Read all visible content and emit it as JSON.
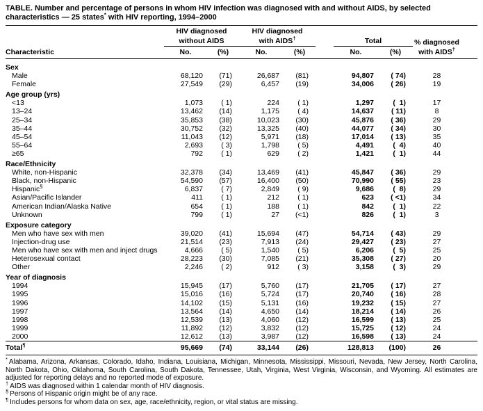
{
  "colors": {
    "background": "#ffffff",
    "text": "#000000",
    "rule": "#000000"
  },
  "title": {
    "part1": "TABLE. Number and percentage of persons in whom HIV infection was diagnosed with and without AIDS, by selected characteristics — 25 states",
    "sup": "*",
    "part2": " with HIV reporting, 1994–2000"
  },
  "header": {
    "group1_line1": "HIV diagnosed",
    "group1_line2": "without AIDS",
    "group2_line1": "HIV diagnosed",
    "group2_line2": "with AIDS",
    "dagger": "†",
    "total_label": "Total",
    "pct_line1": "% diagnosed",
    "pct_line2": "with AIDS",
    "characteristic": "Characteristic",
    "no_label": "No.",
    "pct_label": "(%)"
  },
  "sections": [
    {
      "name": "Sex",
      "rows": [
        {
          "label": "Male",
          "cells": [
            "68,120",
            "(71)",
            "26,687",
            "(81)",
            "94,807",
            "( 74)",
            "28"
          ]
        },
        {
          "label": "Female",
          "cells": [
            "27,549",
            "(29)",
            "6,457",
            "(19)",
            "34,006",
            "( 26)",
            "19"
          ]
        }
      ]
    },
    {
      "name": "Age group (yrs)",
      "rows": [
        {
          "label": "<13",
          "cells": [
            "1,073",
            "( 1)",
            "224",
            "( 1)",
            "1,297",
            "(  1)",
            "17"
          ]
        },
        {
          "label": "13–24",
          "cells": [
            "13,462",
            "(14)",
            "1,175",
            "( 4)",
            "14,637",
            "( 11)",
            "8"
          ]
        },
        {
          "label": "25–34",
          "cells": [
            "35,853",
            "(38)",
            "10,023",
            "(30)",
            "45,876",
            "( 36)",
            "29"
          ]
        },
        {
          "label": "35–44",
          "cells": [
            "30,752",
            "(32)",
            "13,325",
            "(40)",
            "44,077",
            "( 34)",
            "30"
          ]
        },
        {
          "label": "45–54",
          "cells": [
            "11,043",
            "(12)",
            "5,971",
            "(18)",
            "17,014",
            "( 13)",
            "35"
          ]
        },
        {
          "label": "55–64",
          "cells": [
            "2,693",
            "( 3)",
            "1,798",
            "( 5)",
            "4,491",
            "(  4)",
            "40"
          ]
        },
        {
          "label": "≥65",
          "cells": [
            "792",
            "( 1)",
            "629",
            "( 2)",
            "1,421",
            "(  1)",
            "44"
          ]
        }
      ]
    },
    {
      "name": "Race/Ethnicity",
      "rows": [
        {
          "label": "White, non-Hispanic",
          "cells": [
            "32,378",
            "(34)",
            "13,469",
            "(41)",
            "45,847",
            "( 36)",
            "29"
          ]
        },
        {
          "label": "Black, non-Hispanic",
          "cells": [
            "54,590",
            "(57)",
            "16,400",
            "(50)",
            "70,990",
            "( 55)",
            "23"
          ]
        },
        {
          "label": "Hispanic",
          "sup": "§",
          "cells": [
            "6,837",
            "( 7)",
            "2,849",
            "( 9)",
            "9,686",
            "(  8)",
            "29"
          ]
        },
        {
          "label": "Asian/Pacific Islander",
          "cells": [
            "411",
            "( 1)",
            "212",
            "( 1)",
            "623",
            "( <1)",
            "34"
          ]
        },
        {
          "label": "American Indian/Alaska Native",
          "cells": [
            "654",
            "( 1)",
            "188",
            "( 1)",
            "842",
            "(  1)",
            "22"
          ]
        },
        {
          "label": "Unknown",
          "cells": [
            "799",
            "( 1)",
            "27",
            "(<1)",
            "826",
            "(  1)",
            "3"
          ]
        }
      ]
    },
    {
      "name": "Exposure category",
      "rows": [
        {
          "label": "Men who have sex with men",
          "cells": [
            "39,020",
            "(41)",
            "15,694",
            "(47)",
            "54,714",
            "( 43)",
            "29"
          ]
        },
        {
          "label": "Injection-drug use",
          "cells": [
            "21,514",
            "(23)",
            "7,913",
            "(24)",
            "29,427",
            "( 23)",
            "27"
          ]
        },
        {
          "label": "Men who have sex with men and inject drugs",
          "cells": [
            "4,666",
            "( 5)",
            "1,540",
            "( 5)",
            "6,206",
            "(  5)",
            "25"
          ]
        },
        {
          "label": "Heterosexual contact",
          "cells": [
            "28,223",
            "(30)",
            "7,085",
            "(21)",
            "35,308",
            "( 27)",
            "20"
          ]
        },
        {
          "label": "Other",
          "cells": [
            "2,246",
            "( 2)",
            "912",
            "( 3)",
            "3,158",
            "(  3)",
            "29"
          ]
        }
      ]
    },
    {
      "name": "Year of diagnosis",
      "rows": [
        {
          "label": "1994",
          "cells": [
            "15,945",
            "(17)",
            "5,760",
            "(17)",
            "21,705",
            "( 17)",
            "27"
          ]
        },
        {
          "label": "1995",
          "cells": [
            "15,016",
            "(16)",
            "5,724",
            "(17)",
            "20,740",
            "( 16)",
            "28"
          ]
        },
        {
          "label": "1996",
          "cells": [
            "14,102",
            "(15)",
            "5,131",
            "(16)",
            "19,232",
            "( 15)",
            "27"
          ]
        },
        {
          "label": "1997",
          "cells": [
            "13,564",
            "(14)",
            "4,650",
            "(14)",
            "18,214",
            "( 14)",
            "26"
          ]
        },
        {
          "label": "1998",
          "cells": [
            "12,539",
            "(13)",
            "4,060",
            "(12)",
            "16,599",
            "( 13)",
            "25"
          ]
        },
        {
          "label": "1999",
          "cells": [
            "11,892",
            "(12)",
            "3,832",
            "(12)",
            "15,725",
            "( 12)",
            "24"
          ]
        },
        {
          "label": "2000",
          "cells": [
            "12,612",
            "(13)",
            "3,987",
            "(12)",
            "16,598",
            "( 13)",
            "24"
          ]
        }
      ]
    }
  ],
  "total_row": {
    "label": "Total",
    "sup": "¶",
    "cells": [
      "95,669",
      "(74)",
      "33,144",
      "(26)",
      "128,813",
      "(100)",
      "26"
    ]
  },
  "footnotes": [
    {
      "marker": "*",
      "text": "Alabama, Arizona, Arkansas, Colorado, Idaho, Indiana, Louisiana, Michigan, Minnesota, Mississippi, Missouri, Nevada, New Jersey, North Carolina, North Dakota, Ohio, Oklahoma, South Carolina, South Dakota, Tennessee, Utah, Virginia, West Virginia, Wisconsin, and Wyoming. All estimates are adjusted for reporting delays and no reported mode of exposure."
    },
    {
      "marker": "†",
      "text": "AIDS was diagnosed within 1 calendar month of HIV diagnosis."
    },
    {
      "marker": "§",
      "text": "Persons of Hispanic origin might be of any race."
    },
    {
      "marker": "¶",
      "text": "Includes persons for whom data on sex, age, race/ethnicity, region, or vital status are missing."
    }
  ]
}
